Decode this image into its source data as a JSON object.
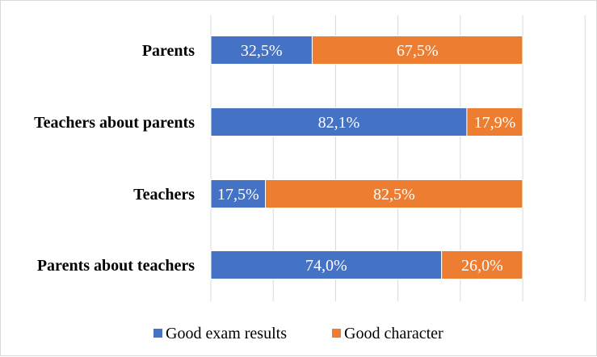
{
  "chart_data": {
    "type": "bar",
    "orientation": "horizontal",
    "stacked": true,
    "percent": true,
    "categories": [
      "Parents",
      "Teachers about parents",
      "Teachers",
      "Parents about teachers"
    ],
    "series": [
      {
        "name": "Good exam results",
        "color": "#4472c4",
        "values": [
          32.5,
          82.1,
          17.5,
          74.0
        ],
        "labels": [
          "32,5%",
          "82,1%",
          "17,5%",
          "74,0%"
        ]
      },
      {
        "name": "Good character",
        "color": "#ed7d31",
        "values": [
          67.5,
          17.9,
          82.5,
          26.0
        ],
        "labels": [
          "67,5%",
          "17,9%",
          "82,5%",
          "26,0%"
        ]
      }
    ],
    "xlim": [
      0,
      100
    ],
    "grid": "vertical",
    "legend": "bottom"
  }
}
